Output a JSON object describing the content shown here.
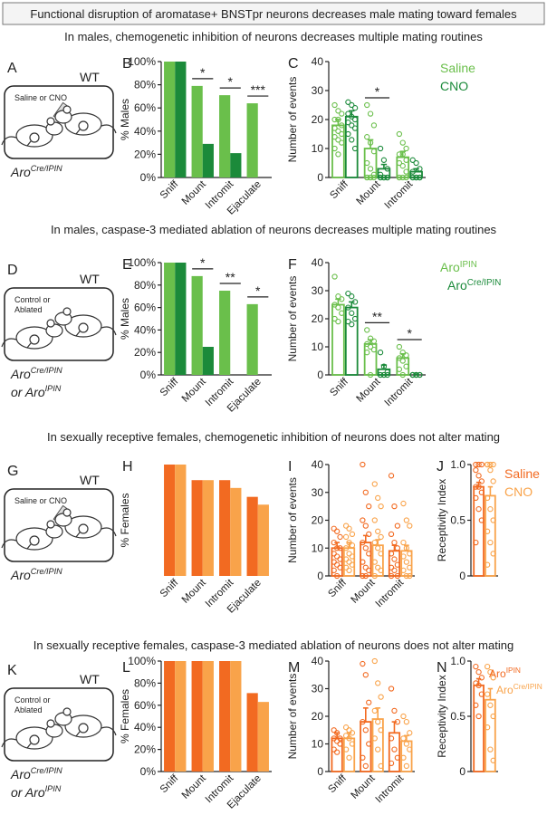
{
  "title": "Functional disruption of aromatase+ BNSTpr neurons decreases male mating toward females",
  "sections": [
    {
      "heading": "In males, chemogenetic inhibition of neurons decreases multiple mating routines",
      "panel": "A",
      "strain": "WT",
      "treatment": [
        "Saline or CNO"
      ],
      "genotype": [
        [
          {
            "t": "Aro"
          },
          {
            "sup": "Cre/IPIN"
          }
        ]
      ]
    },
    {
      "heading": "In males, caspase-3 mediated ablation of neurons decreases multiple mating routines",
      "panel": "D",
      "strain": "WT",
      "treatment": [
        "Control or",
        "Ablated"
      ],
      "genotype": [
        [
          {
            "t": "Aro"
          },
          {
            "sup": "Cre/IPIN"
          }
        ],
        [
          {
            "t": "or Aro"
          },
          {
            "sup": "IPIN"
          }
        ]
      ]
    },
    {
      "heading": "In sexually receptive females, chemogenetic inhibition of neurons does not alter mating",
      "panel": "G",
      "strain": "WT",
      "treatment": [
        "Saline or CNO"
      ],
      "genotype": [
        [
          {
            "t": "Aro"
          },
          {
            "sup": "Cre/IPIN"
          }
        ]
      ]
    },
    {
      "heading": "In sexually receptive females, caspase-3 mediated ablation of neurons does not alter mating",
      "panel": "K",
      "strain": "WT",
      "treatment": [
        "Control or",
        "Ablated"
      ],
      "genotype": [
        [
          {
            "t": "Aro"
          },
          {
            "sup": "Cre/IPIN"
          }
        ],
        [
          {
            "t": "or Aro"
          },
          {
            "sup": "IPIN"
          }
        ]
      ]
    }
  ],
  "chart_data": [
    {
      "panel": "B",
      "type": "bar",
      "ylabel": "% Males",
      "categories": [
        "Sniff",
        "Mount",
        "Intromit",
        "Ejaculate"
      ],
      "series": [
        {
          "color": "#6abf4b",
          "values": [
            100,
            79,
            71,
            64
          ]
        },
        {
          "color": "#1b8a3a",
          "values": [
            100,
            29,
            21,
            0
          ]
        }
      ],
      "ylim": [
        0,
        100
      ],
      "yticks": [
        {
          "value": 0,
          "label": "0%"
        },
        {
          "value": 20,
          "label": "20%"
        },
        {
          "value": 40,
          "label": "40%"
        },
        {
          "value": 60,
          "label": "60%"
        },
        {
          "value": 80,
          "label": "80%"
        },
        {
          "value": 100,
          "label": "100%"
        }
      ],
      "significance": [
        null,
        "*",
        "*",
        "***"
      ]
    },
    {
      "panel": "C",
      "type": "dotbar",
      "ylabel": "Number of events",
      "categories": [
        "Sniff",
        "Mount",
        "Intromit"
      ],
      "series": [
        {
          "name": "Saline",
          "color": "#6abf4b",
          "values": [
            18,
            10,
            7
          ],
          "errors": [
            2,
            3,
            2
          ],
          "points": [
            [
              25,
              23,
              22,
              20,
              20,
              18,
              17,
              16,
              15,
              14,
              13,
              12,
              10,
              8
            ],
            [
              25,
              22,
              18,
              14,
              12,
              9,
              5,
              3,
              1,
              0,
              0,
              0,
              0,
              0
            ],
            [
              15,
              12,
              10,
              8,
              8,
              6,
              5,
              4,
              2,
              0,
              0,
              0,
              0
            ]
          ]
        },
        {
          "name": "CNO",
          "color": "#1b8a3a",
          "values": [
            21,
            3,
            2
          ],
          "errors": [
            2,
            1.5,
            1
          ],
          "points": [
            [
              26,
              25,
              24,
              22,
              21,
              20,
              19,
              18,
              17,
              15,
              13,
              10
            ],
            [
              10,
              6,
              3,
              1,
              0,
              0,
              0,
              0,
              0,
              0,
              0,
              0
            ],
            [
              6,
              5,
              3,
              2,
              0,
              0,
              0,
              0,
              0,
              0,
              0,
              0
            ]
          ]
        }
      ],
      "ylim": [
        0,
        40
      ],
      "yticks": [
        0,
        10,
        20,
        30,
        40
      ],
      "significance": [
        null,
        "*",
        null
      ]
    },
    {
      "panel": "E",
      "type": "bar",
      "ylabel": "% Males",
      "categories": [
        "Sniff",
        "Mount",
        "Intromit",
        "Ejaculate"
      ],
      "series": [
        {
          "color": "#6abf4b",
          "values": [
            100,
            88,
            75,
            63
          ]
        },
        {
          "color": "#1b8a3a",
          "values": [
            100,
            25,
            0,
            0
          ]
        }
      ],
      "ylim": [
        0,
        100
      ],
      "yticks": [
        {
          "value": 0,
          "label": "0%"
        },
        {
          "value": 20,
          "label": "20%"
        },
        {
          "value": 40,
          "label": "40%"
        },
        {
          "value": 60,
          "label": "60%"
        },
        {
          "value": 80,
          "label": "80%"
        },
        {
          "value": 100,
          "label": "100%"
        }
      ],
      "significance": [
        null,
        "*",
        "**",
        "*"
      ]
    },
    {
      "panel": "F",
      "type": "dotbar",
      "ylabel": "Number of events",
      "categories": [
        "Sniff",
        "Mount",
        "Intromit"
      ],
      "series": [
        {
          "name": "Aro",
          "name_sup": "IPIN",
          "color": "#6abf4b",
          "values": [
            25,
            11,
            6
          ],
          "errors": [
            2,
            1.5,
            1.5
          ],
          "points": [
            [
              35,
              28,
              27,
              25,
              24,
              22,
              20,
              19
            ],
            [
              16,
              13,
              12,
              11,
              10,
              9,
              8,
              0
            ],
            [
              10,
              8,
              7,
              6,
              5,
              3,
              2,
              0
            ]
          ]
        },
        {
          "name": "Aro",
          "name_sup": "Cre/IPIN",
          "color": "#1b8a3a",
          "values": [
            24,
            2,
            0
          ],
          "errors": [
            2,
            1.5,
            0.3
          ],
          "points": [
            [
              29,
              28,
              26,
              24,
              22,
              20,
              19,
              18
            ],
            [
              8,
              3,
              1,
              0,
              0,
              0,
              0,
              0
            ],
            [
              0,
              0,
              0,
              0,
              0,
              0,
              0,
              0
            ]
          ]
        }
      ],
      "ylim": [
        0,
        40
      ],
      "yticks": [
        0,
        10,
        20,
        30,
        40
      ],
      "significance": [
        null,
        "**",
        "*"
      ]
    },
    {
      "panel": "H",
      "type": "bar",
      "ylabel": "% Females",
      "categories": [
        "Sniff",
        "Mount",
        "Intromit",
        "Ejaculate"
      ],
      "series": [
        {
          "color": "#f26a21",
          "values": [
            100,
            86,
            86,
            71
          ]
        },
        {
          "color": "#f9a34a",
          "values": [
            100,
            86,
            79,
            64
          ]
        }
      ],
      "ylim": [
        0,
        100
      ]
    },
    {
      "panel": "I",
      "type": "dotbar",
      "ylabel": "Number of events",
      "categories": [
        "Sniff",
        "Mount",
        "Intromit"
      ],
      "series": [
        {
          "color": "#f26a21",
          "values": [
            10,
            12,
            9
          ],
          "errors": [
            2,
            2.5,
            2
          ],
          "points": [
            [
              17,
              16,
              14,
              12,
              10,
              10,
              8,
              7,
              6,
              5,
              4,
              3,
              2,
              0
            ],
            [
              40,
              30,
              25,
              20,
              18,
              15,
              12,
              10,
              8,
              5,
              3,
              2,
              0,
              0
            ],
            [
              36,
              25,
              18,
              15,
              12,
              10,
              8,
              6,
              4,
              3,
              2,
              0,
              0
            ]
          ]
        },
        {
          "color": "#f9a34a",
          "values": [
            10,
            11,
            9
          ],
          "errors": [
            2,
            2,
            2
          ],
          "points": [
            [
              18,
              17,
              15,
              14,
              12,
              11,
              10,
              8,
              7,
              6,
              5,
              4,
              3,
              2
            ],
            [
              33,
              28,
              25,
              20,
              16,
              14,
              12,
              10,
              8,
              5,
              3,
              2,
              0
            ],
            [
              26,
              20,
              18,
              12,
              10,
              8,
              7,
              5,
              3,
              2,
              0,
              0
            ]
          ]
        }
      ],
      "ylim": [
        0,
        40
      ],
      "yticks": [
        0,
        10,
        20,
        30,
        40
      ]
    },
    {
      "panel": "J",
      "type": "dotbar",
      "ylabel": "Receptivity Index",
      "categories": [
        null
      ],
      "series": [
        {
          "name": "Saline",
          "color": "#f26a21",
          "values": [
            0.8
          ],
          "errors": [
            0.04
          ],
          "points": [
            [
              1,
              1,
              1,
              0.95,
              0.9,
              0.85,
              0.8,
              0.8,
              0.75,
              0.7,
              0.6,
              0.5,
              0.3
            ]
          ]
        },
        {
          "name": "CNO",
          "color": "#f9a34a",
          "values": [
            0.72
          ],
          "errors": [
            0.08
          ],
          "points": [
            [
              1,
              1,
              1,
              1,
              0.95,
              0.85,
              0.7,
              0.6,
              0.5,
              0.4,
              0.3,
              0.2,
              0.1
            ]
          ]
        }
      ],
      "ylim": [
        0,
        1
      ],
      "yticks": [
        0,
        0.5,
        {
          "value": 1,
          "label": "1.0"
        }
      ]
    },
    {
      "panel": "L",
      "type": "bar",
      "ylabel": "% Females",
      "categories": [
        "Sniff",
        "Mount",
        "Intromit",
        "Ejaculate"
      ],
      "series": [
        {
          "color": "#f26a21",
          "values": [
            100,
            100,
            100,
            71
          ]
        },
        {
          "color": "#f9a34a",
          "values": [
            100,
            100,
            100,
            63
          ]
        }
      ],
      "ylim": [
        0,
        100
      ],
      "yticks": [
        {
          "value": 0,
          "label": "0%"
        },
        {
          "value": 20,
          "label": "20%"
        },
        {
          "value": 40,
          "label": "40%"
        },
        {
          "value": 60,
          "label": "60%"
        },
        {
          "value": 80,
          "label": "80%"
        },
        {
          "value": 100,
          "label": "100%"
        }
      ]
    },
    {
      "panel": "M",
      "type": "dotbar",
      "ylabel": "Number of events",
      "categories": [
        "Sniff",
        "Mount",
        "Intromit"
      ],
      "series": [
        {
          "color": "#f26a21",
          "values": [
            12,
            18,
            14
          ],
          "errors": [
            2,
            5,
            4
          ],
          "points": [
            [
              15,
              14,
              12,
              12,
              11,
              10,
              8,
              7
            ],
            [
              39,
              35,
              25,
              18,
              15,
              10,
              5,
              2
            ],
            [
              30,
              22,
              18,
              12,
              8,
              5,
              3
            ]
          ]
        },
        {
          "color": "#f9a34a",
          "values": [
            12,
            19,
            11
          ],
          "errors": [
            2,
            4,
            2
          ],
          "points": [
            [
              16,
              15,
              14,
              13,
              12,
              10,
              8,
              5
            ],
            [
              40,
              32,
              27,
              22,
              18,
              15,
              12,
              8,
              2
            ],
            [
              20,
              18,
              14,
              12,
              10,
              8,
              5,
              2
            ]
          ]
        }
      ],
      "ylim": [
        0,
        40
      ],
      "yticks": [
        0,
        10,
        20,
        30,
        40
      ]
    },
    {
      "panel": "N",
      "type": "dotbar",
      "ylabel": "Receptivity Index",
      "categories": [
        null
      ],
      "series": [
        {
          "name": "Aro",
          "name_sup": "IPIN",
          "color": "#f26a21",
          "values": [
            0.78
          ],
          "errors": [
            0.06
          ],
          "points": [
            [
              0.95,
              0.9,
              0.85,
              0.8,
              0.78,
              0.7,
              0.6,
              0.5
            ]
          ]
        },
        {
          "name": "Aro",
          "name_sup": "Cre/IPIN",
          "color": "#f9a34a",
          "values": [
            0.65
          ],
          "errors": [
            0.1
          ],
          "points": [
            [
              0.95,
              0.9,
              0.85,
              0.7,
              0.6,
              0.5,
              0.4,
              0.2,
              0.1
            ]
          ]
        }
      ],
      "ylim": [
        0,
        1
      ],
      "yticks": [
        0,
        0.5,
        {
          "value": 1,
          "label": "1.0"
        }
      ]
    }
  ]
}
